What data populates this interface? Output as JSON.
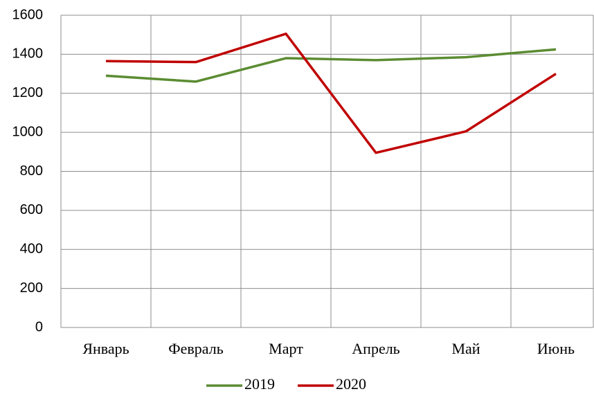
{
  "chart_data": {
    "type": "line",
    "categories": [
      "Январь",
      "Февраль",
      "Март",
      "Апрель",
      "Май",
      "Июнь"
    ],
    "series": [
      {
        "name": "2019",
        "color": "#5b8c32",
        "values": [
          1290,
          1260,
          1380,
          1370,
          1385,
          1425
        ]
      },
      {
        "name": "2020",
        "color": "#c00000",
        "values": [
          1365,
          1360,
          1505,
          895,
          1005,
          1300
        ]
      }
    ],
    "ylim": [
      0,
      1600
    ],
    "yticks": [
      0,
      200,
      400,
      600,
      800,
      1000,
      1200,
      1400,
      1600
    ],
    "grid": true,
    "legend": "bottom"
  }
}
